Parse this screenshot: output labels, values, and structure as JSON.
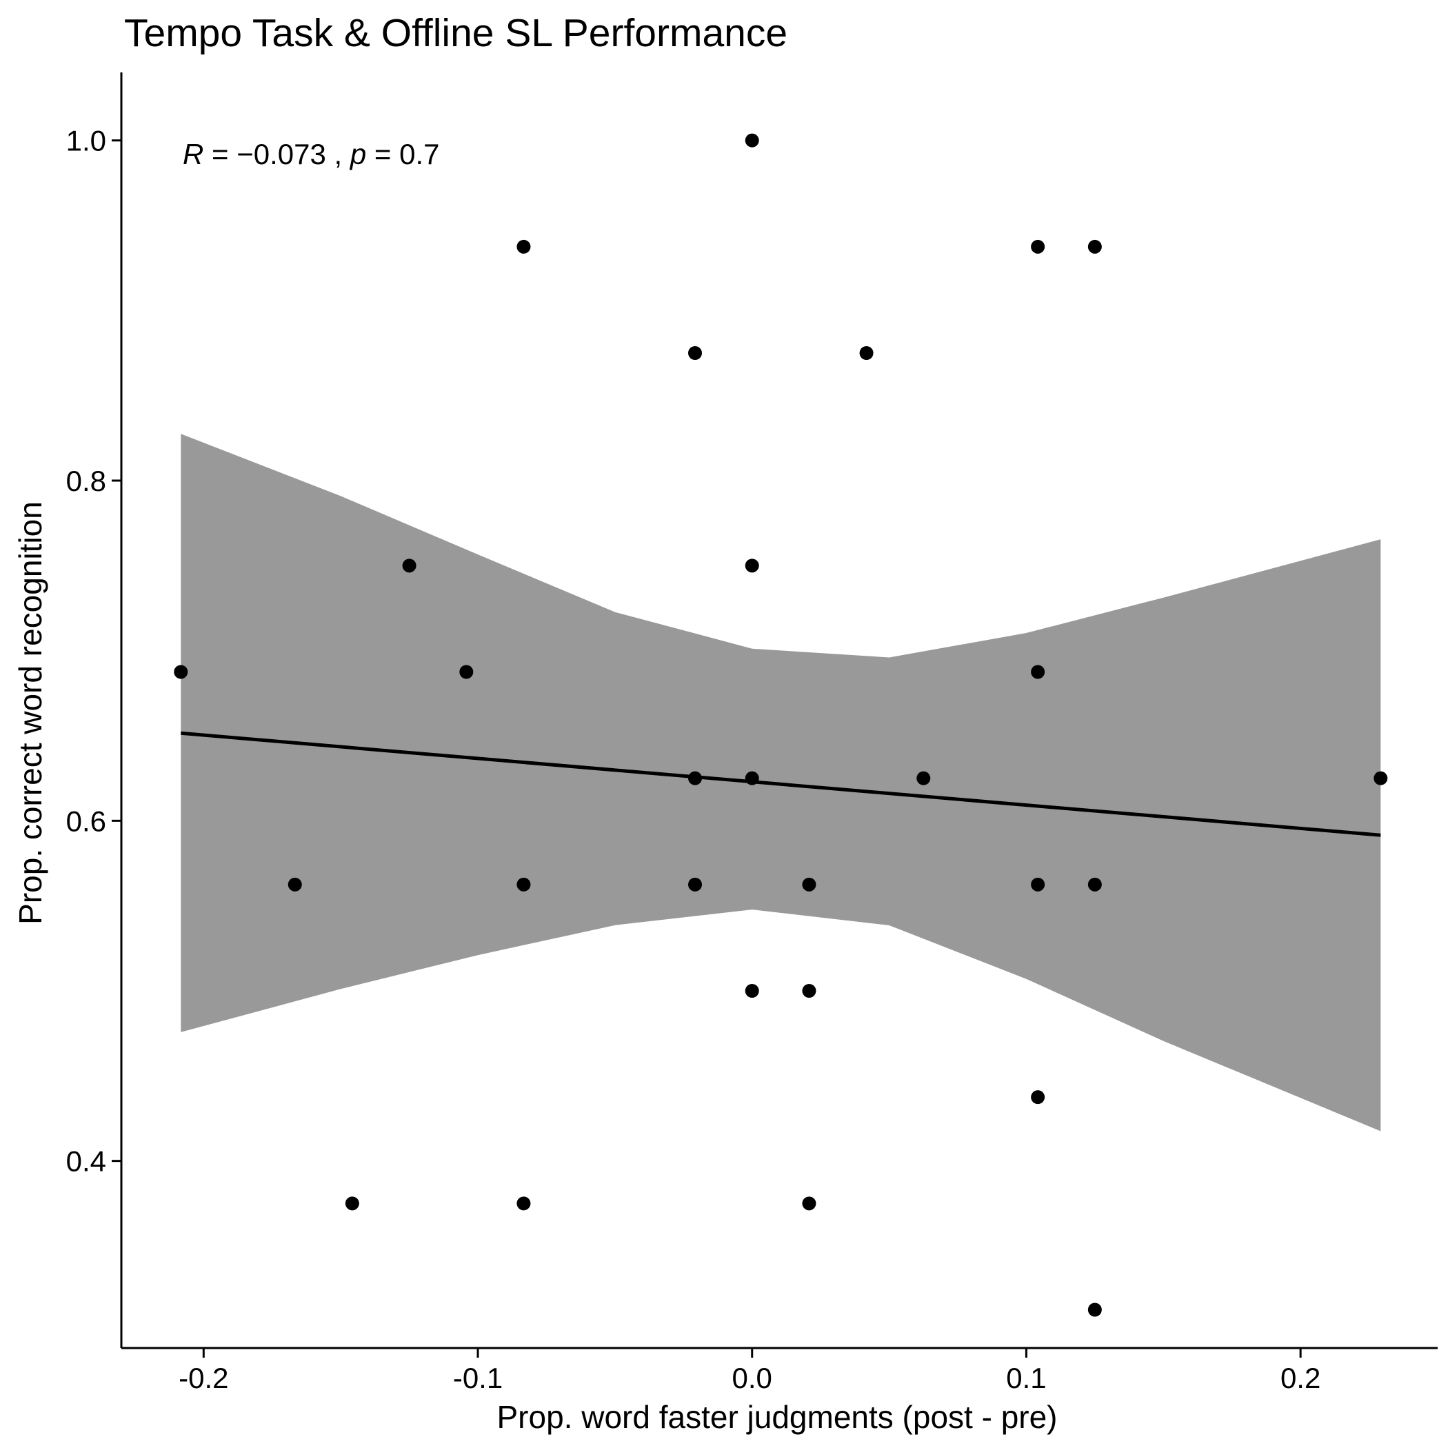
{
  "chart_data": {
    "type": "scatter",
    "title": "Tempo Task & Offline SL Performance",
    "xlabel": "Prop. word faster judgments (post - pre)",
    "ylabel": "Prop. correct word recognition",
    "annotation": {
      "r_symbol": "R",
      "r_text": " = −0.073 , ",
      "p_symbol": "p",
      "p_text": " = 0.7"
    },
    "xlim": [
      -0.23,
      0.25
    ],
    "ylim": [
      0.29,
      1.04
    ],
    "x_ticks": [
      -0.2,
      -0.1,
      0.0,
      0.1,
      0.2
    ],
    "x_tick_labels": [
      "-0.2",
      "-0.1",
      "0.0",
      "0.1",
      "0.2"
    ],
    "y_ticks": [
      0.4,
      0.6,
      0.8,
      1.0
    ],
    "y_tick_labels": [
      "0.4",
      "0.6",
      "0.8",
      "1.0"
    ],
    "grid": false,
    "points": [
      {
        "x": 0.0,
        "y": 1.0
      },
      {
        "x": -0.0833,
        "y": 0.9375
      },
      {
        "x": 0.1042,
        "y": 0.9375
      },
      {
        "x": 0.125,
        "y": 0.9375
      },
      {
        "x": -0.0208,
        "y": 0.875
      },
      {
        "x": 0.0417,
        "y": 0.875
      },
      {
        "x": -0.125,
        "y": 0.75
      },
      {
        "x": 0.0,
        "y": 0.75
      },
      {
        "x": -0.2083,
        "y": 0.6875
      },
      {
        "x": -0.1042,
        "y": 0.6875
      },
      {
        "x": 0.1042,
        "y": 0.6875
      },
      {
        "x": -0.0208,
        "y": 0.625
      },
      {
        "x": 0.0,
        "y": 0.625
      },
      {
        "x": 0.0625,
        "y": 0.625
      },
      {
        "x": 0.2292,
        "y": 0.625
      },
      {
        "x": -0.1667,
        "y": 0.5625
      },
      {
        "x": -0.0833,
        "y": 0.5625
      },
      {
        "x": -0.0208,
        "y": 0.5625
      },
      {
        "x": 0.0208,
        "y": 0.5625
      },
      {
        "x": 0.1042,
        "y": 0.5625
      },
      {
        "x": 0.125,
        "y": 0.5625
      },
      {
        "x": 0.0,
        "y": 0.5
      },
      {
        "x": 0.0208,
        "y": 0.5
      },
      {
        "x": 0.1042,
        "y": 0.4375
      },
      {
        "x": -0.1458,
        "y": 0.375
      },
      {
        "x": -0.0833,
        "y": 0.375
      },
      {
        "x": 0.0208,
        "y": 0.375
      },
      {
        "x": 0.125,
        "y": 0.3125
      }
    ],
    "fit_line": {
      "x": [
        -0.2083,
        0.2292
      ],
      "y": [
        0.6515,
        0.5915
      ]
    },
    "confidence_band": {
      "x": [
        -0.2083,
        -0.15,
        -0.1,
        -0.05,
        0.0,
        0.05,
        0.1,
        0.15,
        0.2292
      ],
      "upper": [
        0.8275,
        0.7909,
        0.7566,
        0.7227,
        0.7012,
        0.696,
        0.7104,
        0.7312,
        0.7655
      ],
      "lower": [
        0.4757,
        0.5011,
        0.521,
        0.5386,
        0.5478,
        0.5385,
        0.507,
        0.4705,
        0.4175
      ]
    },
    "colors": {
      "points": "#000000",
      "fit_line": "#000000",
      "band": "#999999"
    }
  }
}
